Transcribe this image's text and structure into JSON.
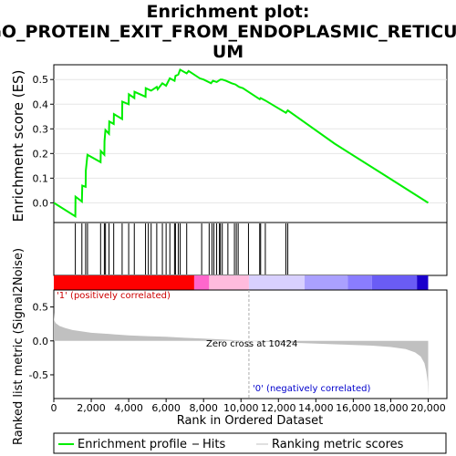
{
  "title_line1": "Enrichment plot:",
  "title_line2": "GO_PROTEIN_EXIT_FROM_ENDOPLASMIC_RETICUL",
  "title_line3": "UM",
  "colors": {
    "es_line": "#00ee00",
    "hit_line": "#000000",
    "metric_fill": "#c0c0c0",
    "positive": "#ff0000",
    "negative": "#0000ff",
    "zero_cross_line": "#aaaaaa",
    "negative_label": "#0000cc",
    "positive_label": "#cc0000"
  },
  "top_panel": {
    "ylabel": "Enrichment score (ES)",
    "yticks": [
      "0.0",
      "0.1",
      "0.2",
      "0.3",
      "0.4",
      "0.5"
    ]
  },
  "bottom_panel": {
    "ylabel": "Ranked list metric (Signal2Noise)",
    "yticks": [
      "0.5",
      "0.0",
      "-0.5"
    ],
    "xlabel": "Rank in Ordered Dataset",
    "xticks": [
      "0",
      "2,000",
      "4,000",
      "6,000",
      "8,000",
      "10,000",
      "12,000",
      "14,000",
      "16,000",
      "18,000",
      "20,000"
    ],
    "zero_cross_text": "Zero cross at 10424",
    "positive_text": "'1' (positively correlated)",
    "negative_text": "'0' (negatively correlated)"
  },
  "legend": {
    "es_label": "Enrichment profile",
    "hits_label": "Hits",
    "metric_label": "Ranking metric scores"
  },
  "chart_data": {
    "type": "line",
    "x_range": [
      0,
      21000
    ],
    "es_ylim": [
      -0.08,
      0.56
    ],
    "metric_ylim": [
      -0.85,
      0.75
    ],
    "zero_cross": 10424,
    "n_genes": 20000,
    "es_curve": [
      [
        0,
        0.0
      ],
      [
        1150,
        -0.055
      ],
      [
        1160,
        0.025
      ],
      [
        1500,
        0.005
      ],
      [
        1520,
        0.07
      ],
      [
        1700,
        0.065
      ],
      [
        1710,
        0.13
      ],
      [
        1800,
        0.195
      ],
      [
        2500,
        0.165
      ],
      [
        2510,
        0.21
      ],
      [
        2700,
        0.195
      ],
      [
        2710,
        0.25
      ],
      [
        2760,
        0.295
      ],
      [
        2950,
        0.28
      ],
      [
        2960,
        0.33
      ],
      [
        3200,
        0.32
      ],
      [
        3210,
        0.36
      ],
      [
        3650,
        0.34
      ],
      [
        3660,
        0.41
      ],
      [
        4000,
        0.4
      ],
      [
        4010,
        0.44
      ],
      [
        4300,
        0.425
      ],
      [
        4310,
        0.45
      ],
      [
        4900,
        0.43
      ],
      [
        4910,
        0.465
      ],
      [
        5200,
        0.455
      ],
      [
        5500,
        0.47
      ],
      [
        5550,
        0.46
      ],
      [
        5800,
        0.485
      ],
      [
        6000,
        0.475
      ],
      [
        6200,
        0.505
      ],
      [
        6450,
        0.495
      ],
      [
        6500,
        0.515
      ],
      [
        6650,
        0.52
      ],
      [
        6750,
        0.54
      ],
      [
        7100,
        0.525
      ],
      [
        7200,
        0.535
      ],
      [
        7800,
        0.505
      ],
      [
        8000,
        0.5
      ],
      [
        8400,
        0.485
      ],
      [
        8500,
        0.495
      ],
      [
        8700,
        0.49
      ],
      [
        8900,
        0.5
      ],
      [
        9000,
        0.5
      ],
      [
        9200,
        0.495
      ],
      [
        9500,
        0.485
      ],
      [
        9700,
        0.48
      ],
      [
        9900,
        0.47
      ],
      [
        10100,
        0.465
      ],
      [
        10500,
        0.445
      ],
      [
        11000,
        0.42
      ],
      [
        11050,
        0.425
      ],
      [
        11300,
        0.415
      ],
      [
        12400,
        0.365
      ],
      [
        12500,
        0.375
      ],
      [
        15000,
        0.24
      ],
      [
        17500,
        0.12
      ],
      [
        20000,
        0.0
      ]
    ],
    "hits": [
      1150,
      1500,
      1700,
      1800,
      2500,
      2700,
      2760,
      2950,
      3200,
      3650,
      4000,
      4300,
      4900,
      5050,
      5200,
      5500,
      5800,
      6000,
      6200,
      6450,
      6500,
      6650,
      6750,
      7100,
      7900,
      8300,
      8450,
      8550,
      8700,
      8850,
      8900,
      9000,
      9300,
      9650,
      9750,
      9850,
      10400,
      11000,
      11050,
      11300,
      12400,
      12500
    ],
    "metric_profile": [
      [
        0,
        0.42
      ],
      [
        30,
        0.3
      ],
      [
        100,
        0.26
      ],
      [
        300,
        0.22
      ],
      [
        600,
        0.19
      ],
      [
        1000,
        0.16
      ],
      [
        1500,
        0.14
      ],
      [
        2000,
        0.12
      ],
      [
        3000,
        0.1
      ],
      [
        4000,
        0.08
      ],
      [
        5000,
        0.07
      ],
      [
        6000,
        0.06
      ],
      [
        7000,
        0.045
      ],
      [
        8000,
        0.035
      ],
      [
        9000,
        0.02
      ],
      [
        10424,
        0.0
      ],
      [
        11000,
        -0.01
      ],
      [
        12000,
        -0.02
      ],
      [
        13000,
        -0.03
      ],
      [
        14000,
        -0.04
      ],
      [
        15000,
        -0.05
      ],
      [
        16000,
        -0.06
      ],
      [
        17000,
        -0.07
      ],
      [
        18000,
        -0.09
      ],
      [
        18800,
        -0.12
      ],
      [
        19300,
        -0.17
      ],
      [
        19600,
        -0.23
      ],
      [
        19800,
        -0.33
      ],
      [
        19900,
        -0.45
      ],
      [
        19970,
        -0.6
      ],
      [
        20000,
        -0.82
      ]
    ],
    "color_bar_segments": [
      {
        "start": 0,
        "end": 7500,
        "color": "#ff0000"
      },
      {
        "start": 7500,
        "end": 8300,
        "color": "#ff66cc"
      },
      {
        "start": 8300,
        "end": 10424,
        "color": "#ffbbdd"
      },
      {
        "start": 10424,
        "end": 13400,
        "color": "#d8d0ff"
      },
      {
        "start": 13400,
        "end": 15700,
        "color": "#aaa0ff"
      },
      {
        "start": 15700,
        "end": 17000,
        "color": "#8a7dff"
      },
      {
        "start": 17000,
        "end": 19400,
        "color": "#6a5cf5"
      },
      {
        "start": 19400,
        "end": 20000,
        "color": "#1a00cc"
      }
    ]
  }
}
